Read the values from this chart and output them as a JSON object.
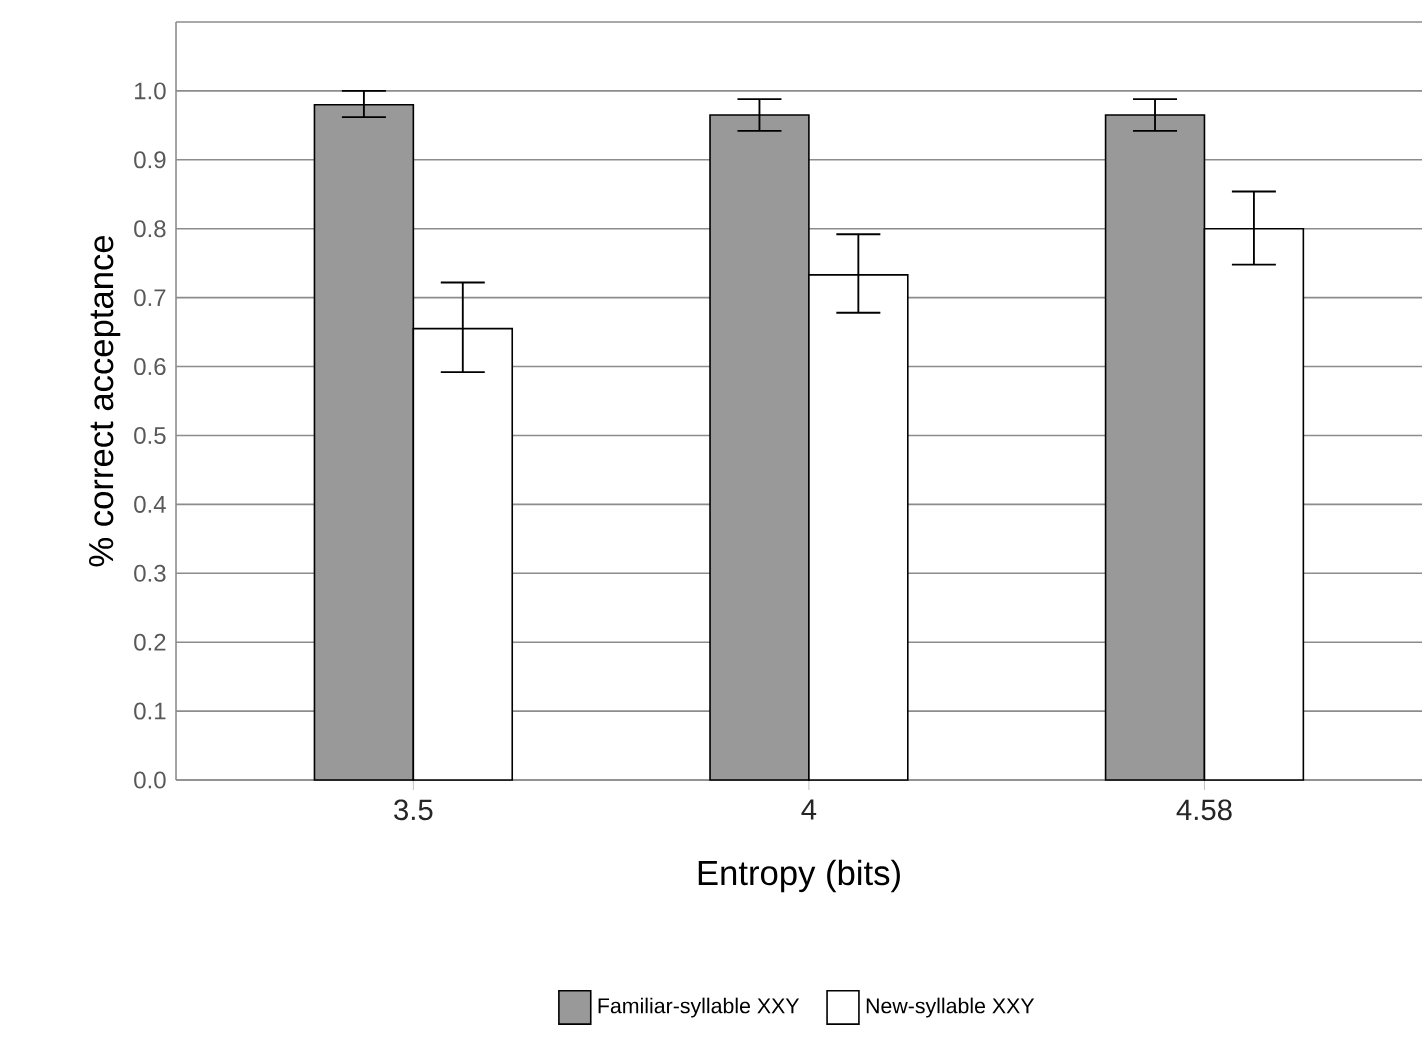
{
  "chart_data": {
    "type": "bar",
    "xlabel": "Entropy (bits)",
    "ylabel": "% correct acceptance",
    "categories": [
      "3.5",
      "4",
      "4.58"
    ],
    "series": [
      {
        "name": "Familiar-syllable XXY",
        "color": "#999999",
        "values": [
          0.98,
          0.965,
          0.965
        ],
        "errors": [
          [
            0.962,
            1.0
          ],
          [
            0.942,
            0.988
          ],
          [
            0.942,
            0.988
          ]
        ]
      },
      {
        "name": "New-syllable XXY",
        "color": "#ffffff",
        "values": [
          0.655,
          0.733,
          0.8
        ],
        "errors": [
          [
            0.592,
            0.722
          ],
          [
            0.678,
            0.792
          ],
          [
            0.748,
            0.854
          ]
        ]
      }
    ],
    "ylim": [
      0,
      1.1
    ],
    "yticks": [
      {
        "value": 0,
        "label": "0.0"
      },
      {
        "value": 0.1,
        "label": "0.1"
      },
      {
        "value": 0.2,
        "label": "0.2"
      },
      {
        "value": 0.3,
        "label": "0.3"
      },
      {
        "value": 0.4,
        "label": "0.4"
      },
      {
        "value": 0.5,
        "label": "0.5"
      },
      {
        "value": 0.6,
        "label": "0.6"
      },
      {
        "value": 0.7,
        "label": "0.7"
      },
      {
        "value": 0.8,
        "label": "0.8"
      },
      {
        "value": 0.9,
        "label": "0.9"
      },
      {
        "value": 1.0,
        "label": "1.0"
      }
    ],
    "grid": "y",
    "legend": "bottom"
  }
}
